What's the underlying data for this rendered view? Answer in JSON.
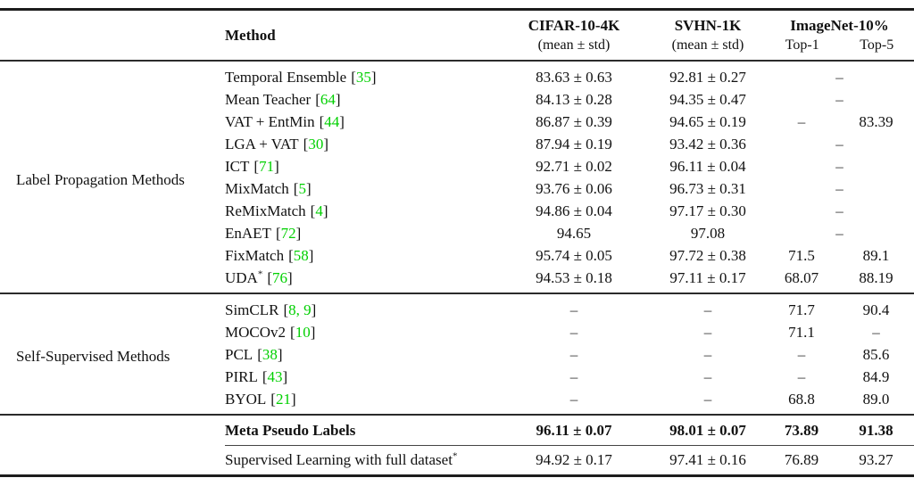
{
  "header": {
    "method_label": "Method",
    "cifar_title": "CIFAR-10-4K",
    "cifar_sub": "(mean ± std)",
    "svhn_title": "SVHN-1K",
    "svhn_sub": "(mean ± std)",
    "imagenet_title": "ImageNet-10%",
    "top1_label": "Top-1",
    "top5_label": "Top-5"
  },
  "groups": {
    "label_propagation": "Label Propagation Methods",
    "self_supervised": "Self-Supervised Methods"
  },
  "rows": [
    {
      "method": "Temporal Ensemble",
      "cite": "35",
      "cifar": "83.63 ± 0.63",
      "svhn": "92.81 ± 0.27",
      "imagenet": "–"
    },
    {
      "method": "Mean Teacher",
      "cite": "64",
      "cifar": "84.13 ± 0.28",
      "svhn": "94.35 ± 0.47",
      "imagenet": "–"
    },
    {
      "method": "VAT + EntMin",
      "cite": "44",
      "cifar": "86.87 ± 0.39",
      "svhn": "94.65 ± 0.19",
      "top1": "–",
      "top5": "83.39"
    },
    {
      "method": "LGA + VAT",
      "cite": "30",
      "cifar": "87.94 ± 0.19",
      "svhn": "93.42 ± 0.36",
      "imagenet": "–"
    },
    {
      "method": "ICT",
      "cite": "71",
      "cifar": "92.71 ± 0.02",
      "svhn": "96.11 ± 0.04",
      "imagenet": "–"
    },
    {
      "method": "MixMatch",
      "cite": "5",
      "cifar": "93.76 ± 0.06",
      "svhn": "96.73 ± 0.31",
      "imagenet": "–"
    },
    {
      "method": "ReMixMatch",
      "cite": "4",
      "cifar": "94.86 ± 0.04",
      "svhn": "97.17 ± 0.30",
      "imagenet": "–"
    },
    {
      "method": "EnAET",
      "cite": "72",
      "cifar": "94.65",
      "svhn": "97.08",
      "imagenet": "–"
    },
    {
      "method": "FixMatch",
      "cite": "58",
      "cifar": "95.74 ± 0.05",
      "svhn": "97.72 ± 0.38",
      "top1": "71.5",
      "top5": "89.1"
    },
    {
      "method": "UDA",
      "sup": "*",
      "cite": "76",
      "cifar": "94.53 ± 0.18",
      "svhn": "97.11 ± 0.17",
      "top1": "68.07",
      "top5": "88.19"
    },
    {
      "method": "SimCLR",
      "cite": "8, 9",
      "cifar": "–",
      "svhn": "–",
      "top1": "71.7",
      "top5": "90.4"
    },
    {
      "method": "MOCOv2",
      "cite": "10",
      "cifar": "–",
      "svhn": "–",
      "top1": "71.1",
      "top5": "–"
    },
    {
      "method": "PCL",
      "cite": "38",
      "cifar": "–",
      "svhn": "–",
      "top1": "–",
      "top5": "85.6"
    },
    {
      "method": "PIRL",
      "cite": "43",
      "cifar": "–",
      "svhn": "–",
      "top1": "–",
      "top5": "84.9"
    },
    {
      "method": "BYOL",
      "cite": "21",
      "cifar": "–",
      "svhn": "–",
      "top1": "68.8",
      "top5": "89.0"
    },
    {
      "method": "Meta Pseudo Labels",
      "cifar": "96.11 ± 0.07",
      "svhn": "98.01 ± 0.07",
      "top1": "73.89",
      "top5": "91.38"
    },
    {
      "method": "Supervised Learning with full dataset",
      "sup": "*",
      "cifar": "94.92 ± 0.17",
      "svhn": "97.41 ± 0.16",
      "top1": "76.89",
      "top5": "93.27"
    }
  ],
  "colors": {
    "citation_green": "#00d000",
    "text": "#111111",
    "rule": "#1c1c1c"
  }
}
